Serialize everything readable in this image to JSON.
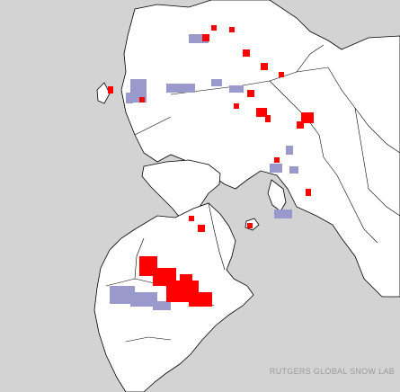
{
  "map": {
    "credit": "RUTGERS GLOBAL SNOW LAB",
    "colors": {
      "ocean": "#d3d3d3",
      "land": "#ffffff",
      "border": "#000000",
      "ice": "#d3d3d3",
      "snow_gain": "#ff0000",
      "snow_loss": "#9999cc"
    }
  }
}
